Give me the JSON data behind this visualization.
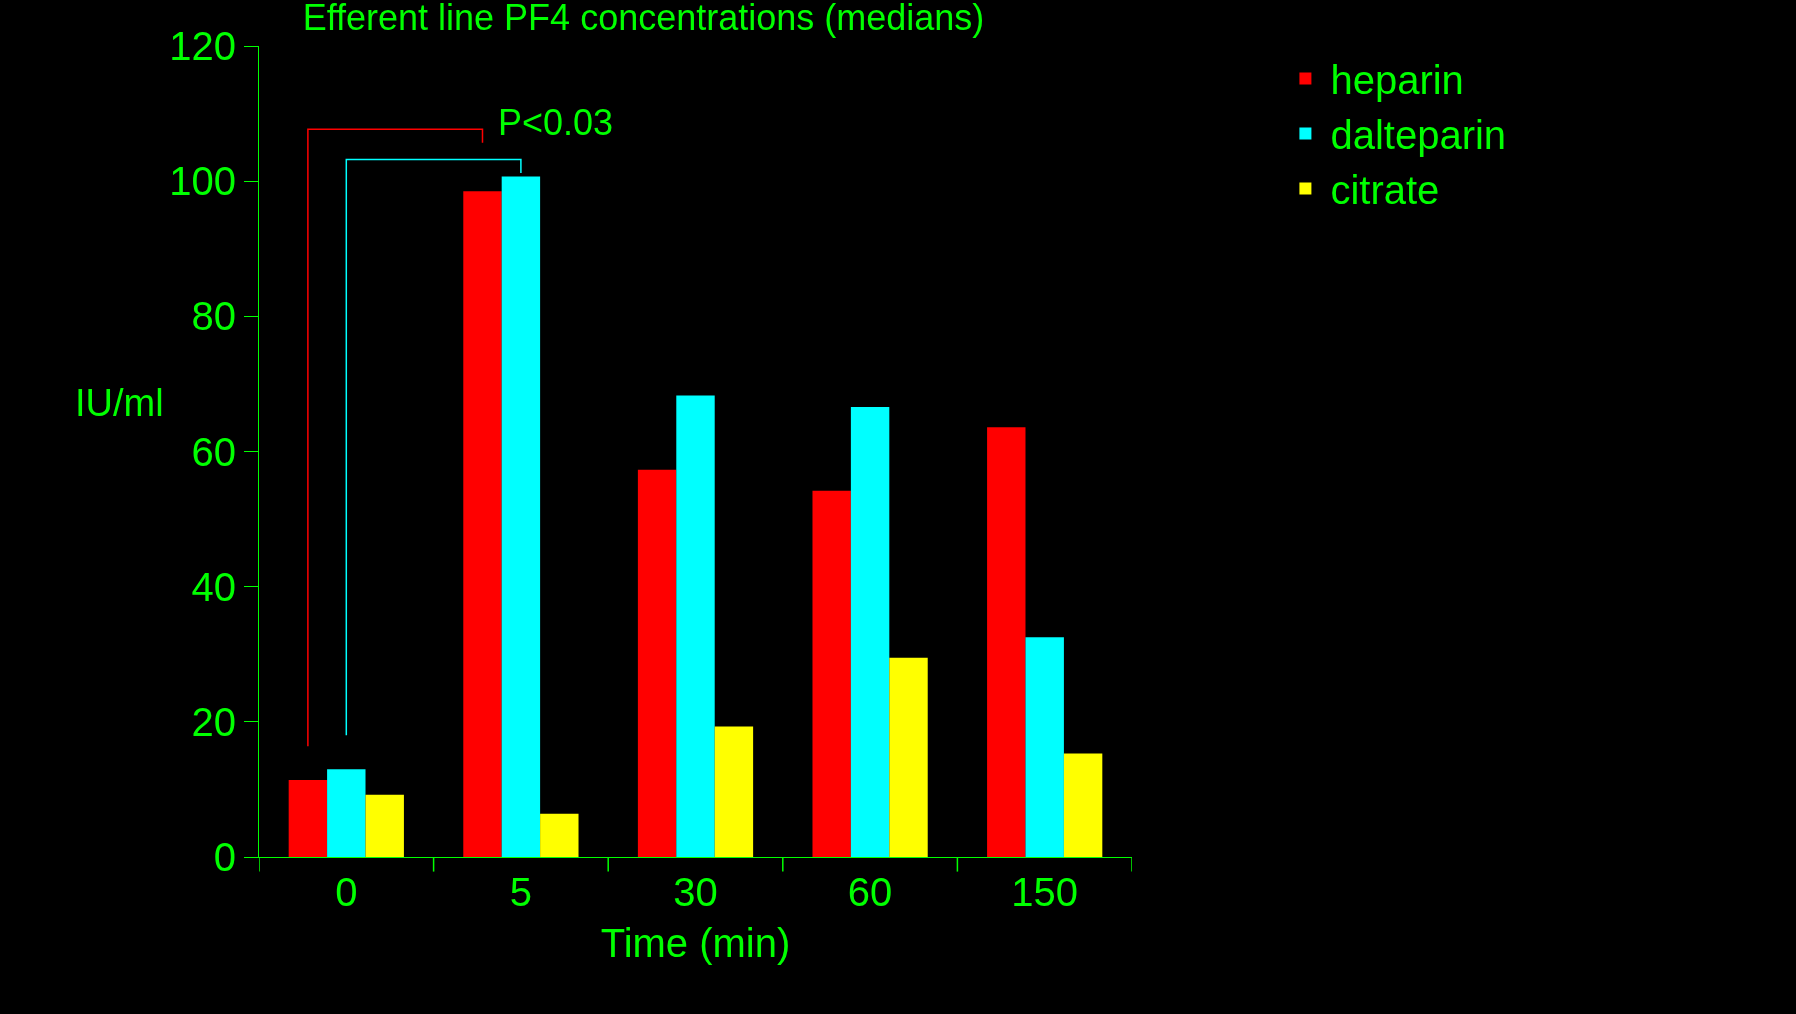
{
  "chart_data": {
    "type": "bar",
    "title": "Efferent line PF4 concentrations (medians)",
    "xlabel": "Time (min)",
    "ylabel": "IU/ml",
    "categories": [
      "0",
      "5",
      "30",
      "60",
      "150"
    ],
    "series": [
      {
        "name": "heparin",
        "color": "#ff0000",
        "values": [
          11.4,
          98.5,
          57.3,
          54.2,
          63.6
        ]
      },
      {
        "name": "dalteparin",
        "color": "#00ffff",
        "values": [
          13.0,
          100.7,
          68.3,
          66.6,
          32.5
        ]
      },
      {
        "name": "citrate",
        "color": "#ffff00",
        "values": [
          9.2,
          6.4,
          19.3,
          29.5,
          15.3
        ]
      }
    ],
    "ylim": [
      0,
      120
    ],
    "yticks": [
      0,
      20,
      40,
      60,
      80,
      100,
      120
    ],
    "grid": false,
    "legend": "top right",
    "annotations": [
      "P<0.03"
    ]
  }
}
